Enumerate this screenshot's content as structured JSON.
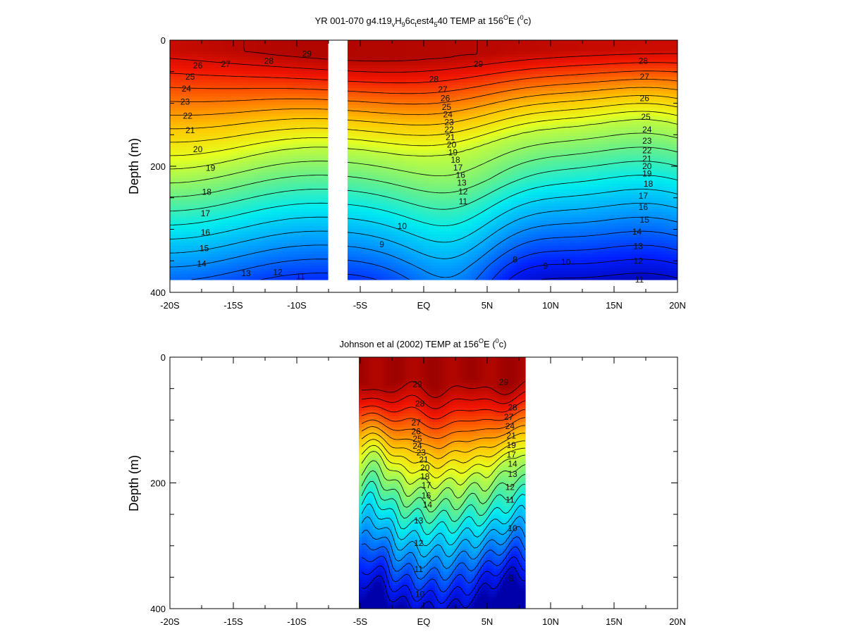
{
  "chart_data": [
    {
      "type": "contour",
      "title_parts": {
        "a": "YR 001-070 g4.t19",
        "b": "v",
        "c": "H",
        "d": "9",
        "e": "6c",
        "f": "t",
        "g": "est4",
        "h": "5",
        "i": "40 TEMP at 156",
        "j": "O",
        "k": "E (",
        "l": "0",
        "m": "c)"
      },
      "ylabel": "Depth (m)",
      "ylim": [
        0,
        400
      ],
      "xlim": [
        -20,
        20
      ],
      "y_inverted": true,
      "x_ticks": [
        -20,
        -15,
        -10,
        -5,
        0,
        5,
        10,
        15,
        20
      ],
      "x_tick_labels": [
        "-20S",
        "-15S",
        "-10S",
        "-5S",
        "EQ",
        "5N",
        "10N",
        "15N",
        "20N"
      ],
      "y_tick_labels": [
        "0",
        "200",
        "400"
      ],
      "data_gaps": [
        [
          -7.5,
          -6.0
        ]
      ],
      "data_depth_limit": 380,
      "contour_interval": 1,
      "contour_labels": [
        {
          "lat": -17.8,
          "depth": 40,
          "v": "26"
        },
        {
          "lat": -15.6,
          "depth": 38,
          "v": "27"
        },
        {
          "lat": -12.2,
          "depth": 33,
          "v": "28"
        },
        {
          "lat": -9.2,
          "depth": 22,
          "v": "29"
        },
        {
          "lat": -18.4,
          "depth": 58,
          "v": "25"
        },
        {
          "lat": -18.7,
          "depth": 77,
          "v": "24"
        },
        {
          "lat": -18.8,
          "depth": 98,
          "v": "23"
        },
        {
          "lat": -18.6,
          "depth": 120,
          "v": "22"
        },
        {
          "lat": -18.4,
          "depth": 143,
          "v": "21"
        },
        {
          "lat": -17.8,
          "depth": 173,
          "v": "20"
        },
        {
          "lat": -16.8,
          "depth": 203,
          "v": "19"
        },
        {
          "lat": -17.1,
          "depth": 241,
          "v": "18"
        },
        {
          "lat": -17.2,
          "depth": 275,
          "v": "17"
        },
        {
          "lat": -17.2,
          "depth": 305,
          "v": "16"
        },
        {
          "lat": -17.3,
          "depth": 330,
          "v": "15"
        },
        {
          "lat": -17.5,
          "depth": 355,
          "v": "14"
        },
        {
          "lat": -14.0,
          "depth": 370,
          "v": "13"
        },
        {
          "lat": -11.5,
          "depth": 368,
          "v": "12"
        },
        {
          "lat": -9.7,
          "depth": 375,
          "v": "11"
        },
        {
          "lat": 4.3,
          "depth": 38,
          "v": "29"
        },
        {
          "lat": 0.8,
          "depth": 62,
          "v": "28"
        },
        {
          "lat": 1.5,
          "depth": 78,
          "v": "27"
        },
        {
          "lat": 1.7,
          "depth": 92,
          "v": "26"
        },
        {
          "lat": 1.8,
          "depth": 106,
          "v": "25"
        },
        {
          "lat": 1.9,
          "depth": 118,
          "v": "24"
        },
        {
          "lat": 2.0,
          "depth": 130,
          "v": "23"
        },
        {
          "lat": 2.0,
          "depth": 142,
          "v": "22"
        },
        {
          "lat": 2.1,
          "depth": 154,
          "v": "21"
        },
        {
          "lat": 2.2,
          "depth": 166,
          "v": "20"
        },
        {
          "lat": 2.3,
          "depth": 178,
          "v": "19"
        },
        {
          "lat": 2.5,
          "depth": 190,
          "v": "18"
        },
        {
          "lat": 2.7,
          "depth": 202,
          "v": "17"
        },
        {
          "lat": 2.9,
          "depth": 214,
          "v": "16"
        },
        {
          "lat": 3.0,
          "depth": 226,
          "v": "13"
        },
        {
          "lat": 3.1,
          "depth": 240,
          "v": "12"
        },
        {
          "lat": 3.1,
          "depth": 256,
          "v": "11"
        },
        {
          "lat": -1.7,
          "depth": 295,
          "v": "10"
        },
        {
          "lat": -3.3,
          "depth": 324,
          "v": "9"
        },
        {
          "lat": 7.2,
          "depth": 348,
          "v": "8"
        },
        {
          "lat": 9.6,
          "depth": 358,
          "v": "9"
        },
        {
          "lat": 11.2,
          "depth": 352,
          "v": "10"
        },
        {
          "lat": 17.3,
          "depth": 33,
          "v": "28"
        },
        {
          "lat": 17.4,
          "depth": 58,
          "v": "27"
        },
        {
          "lat": 17.4,
          "depth": 92,
          "v": "26"
        },
        {
          "lat": 17.5,
          "depth": 122,
          "v": "25"
        },
        {
          "lat": 17.6,
          "depth": 142,
          "v": "24"
        },
        {
          "lat": 17.6,
          "depth": 160,
          "v": "23"
        },
        {
          "lat": 17.6,
          "depth": 175,
          "v": "22"
        },
        {
          "lat": 17.6,
          "depth": 188,
          "v": "21"
        },
        {
          "lat": 17.6,
          "depth": 200,
          "v": "20"
        },
        {
          "lat": 17.6,
          "depth": 212,
          "v": "19"
        },
        {
          "lat": 17.7,
          "depth": 228,
          "v": "18"
        },
        {
          "lat": 17.3,
          "depth": 247,
          "v": "17"
        },
        {
          "lat": 17.3,
          "depth": 265,
          "v": "16"
        },
        {
          "lat": 17.4,
          "depth": 285,
          "v": "15"
        },
        {
          "lat": 16.8,
          "depth": 304,
          "v": "14"
        },
        {
          "lat": 16.9,
          "depth": 327,
          "v": "13"
        },
        {
          "lat": 16.9,
          "depth": 350,
          "v": "12"
        },
        {
          "lat": 17.0,
          "depth": 380,
          "v": "11"
        }
      ]
    },
    {
      "type": "contour",
      "title_parts": {
        "a": "Johnson et al (2002) TEMP at 156",
        "b": "O",
        "c": "E (",
        "d": "0",
        "e": "c)"
      },
      "ylabel": "Depth (m)",
      "ylim": [
        0,
        400
      ],
      "xlim": [
        -20,
        20
      ],
      "y_inverted": true,
      "x_ticks": [
        -20,
        -15,
        -10,
        -5,
        0,
        5,
        10,
        15,
        20
      ],
      "x_tick_labels": [
        "-20S",
        "-15S",
        "-10S",
        "-5S",
        "EQ",
        "5N",
        "10N",
        "15N",
        "20N"
      ],
      "y_tick_labels": [
        "0",
        "200",
        "400"
      ],
      "data_lat_range": [
        -5.0,
        8.0
      ],
      "contour_interval": 1,
      "contour_labels": [
        {
          "lat": -0.5,
          "depth": 43,
          "v": "29"
        },
        {
          "lat": 6.3,
          "depth": 40,
          "v": "29"
        },
        {
          "lat": -0.3,
          "depth": 74,
          "v": "28"
        },
        {
          "lat": 7.0,
          "depth": 80,
          "v": "28"
        },
        {
          "lat": -0.6,
          "depth": 104,
          "v": "27"
        },
        {
          "lat": -0.6,
          "depth": 118,
          "v": "26"
        },
        {
          "lat": -0.5,
          "depth": 130,
          "v": "25"
        },
        {
          "lat": -0.5,
          "depth": 141,
          "v": "24"
        },
        {
          "lat": -0.2,
          "depth": 152,
          "v": "23"
        },
        {
          "lat": 0.0,
          "depth": 163,
          "v": "21"
        },
        {
          "lat": 0.1,
          "depth": 176,
          "v": "20"
        },
        {
          "lat": 0.1,
          "depth": 190,
          "v": "18"
        },
        {
          "lat": 0.2,
          "depth": 204,
          "v": "17"
        },
        {
          "lat": 0.2,
          "depth": 220,
          "v": "16"
        },
        {
          "lat": 0.3,
          "depth": 235,
          "v": "14"
        },
        {
          "lat": -0.4,
          "depth": 260,
          "v": "13"
        },
        {
          "lat": -0.4,
          "depth": 296,
          "v": "12"
        },
        {
          "lat": -0.4,
          "depth": 337,
          "v": "11"
        },
        {
          "lat": -0.3,
          "depth": 377,
          "v": "10"
        },
        {
          "lat": 6.7,
          "depth": 95,
          "v": "27"
        },
        {
          "lat": 6.8,
          "depth": 110,
          "v": "24"
        },
        {
          "lat": 6.9,
          "depth": 125,
          "v": "21"
        },
        {
          "lat": 6.9,
          "depth": 140,
          "v": "19"
        },
        {
          "lat": 6.9,
          "depth": 155,
          "v": "17"
        },
        {
          "lat": 7.0,
          "depth": 170,
          "v": "14"
        },
        {
          "lat": 7.0,
          "depth": 186,
          "v": "13"
        },
        {
          "lat": 6.8,
          "depth": 207,
          "v": "12"
        },
        {
          "lat": 6.8,
          "depth": 227,
          "v": "11"
        },
        {
          "lat": 7.0,
          "depth": 272,
          "v": "10"
        },
        {
          "lat": 6.9,
          "depth": 352,
          "v": "9"
        }
      ]
    }
  ]
}
